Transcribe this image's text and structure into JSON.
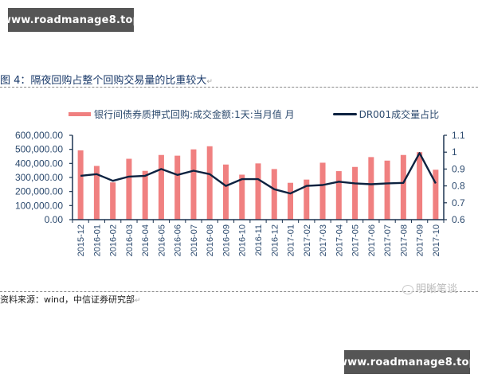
{
  "watermarks": {
    "top": "www.roadmanage8.top",
    "bottom": "www.roadmanage8.top"
  },
  "figure": {
    "title": "图 4：隔夜回购占整个回购交易量的比重较大",
    "return_mark": "↵",
    "source": "资料来源：wind，中信证券研究部",
    "brand": "明晰笔谈"
  },
  "legend": {
    "bar_label": "银行间债券质押式回购:成交金额:1天:当月值 月",
    "line_label": "DR001成交量占比"
  },
  "colors": {
    "bar": "#f08080",
    "line": "#0d2240",
    "axis": "#1a3350",
    "text": "#2c4a6e"
  },
  "chart_data": {
    "type": "bar",
    "title": "图 4：隔夜回购占整个回购交易量的比重较大",
    "xlabel": "",
    "ylabel": "",
    "categories": [
      "2015-12",
      "2016-01",
      "2016-02",
      "2016-03",
      "2016-04",
      "2016-05",
      "2016-06",
      "2016-07",
      "2016-08",
      "2016-09",
      "2016-10",
      "2016-11",
      "2016-12",
      "2017-01",
      "2017-02",
      "2017-03",
      "2017-04",
      "2017-05",
      "2017-06",
      "2017-07",
      "2017-08",
      "2017-09",
      "2017-10"
    ],
    "series": [
      {
        "name": "银行间债券质押式回购:成交金额:1天:当月值 月",
        "type": "bar",
        "axis": "left",
        "values": [
          493000,
          382000,
          265000,
          433000,
          347000,
          460000,
          455000,
          500000,
          522000,
          392000,
          320000,
          400000,
          360000,
          262000,
          285000,
          405000,
          345000,
          375000,
          445000,
          420000,
          460000,
          480000,
          355000
        ]
      },
      {
        "name": "DR001成交量占比",
        "type": "line",
        "axis": "right",
        "values": [
          0.86,
          0.87,
          0.83,
          0.855,
          0.86,
          0.9,
          0.865,
          0.89,
          0.87,
          0.8,
          0.84,
          0.84,
          0.78,
          0.755,
          0.8,
          0.805,
          0.825,
          0.815,
          0.81,
          0.815,
          0.818,
          0.995,
          0.815
        ]
      }
    ],
    "ylim": [
      0,
      600000
    ],
    "y2lim": [
      0.6,
      1.1
    ],
    "y_ticks": [
      "0.00",
      "100,000.00",
      "200,000.00",
      "300,000.00",
      "400,000.00",
      "500,000.00",
      "600,000.00"
    ],
    "y2_ticks": [
      "0.6",
      "0.7",
      "0.8",
      "0.9",
      "1",
      "1.1"
    ],
    "grid": false,
    "legend_position": "top"
  }
}
